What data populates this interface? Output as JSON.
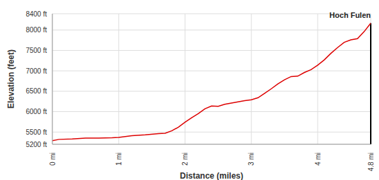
{
  "chart_data": {
    "type": "line",
    "x_label": "Distance (miles)",
    "y_label": "Elevation (feet)",
    "x": [
      0,
      0.1,
      0.3,
      0.5,
      0.7,
      0.9,
      1.0,
      1.1,
      1.2,
      1.4,
      1.6,
      1.7,
      1.8,
      1.9,
      2.0,
      2.1,
      2.2,
      2.3,
      2.4,
      2.5,
      2.6,
      2.7,
      2.8,
      2.9,
      3.0,
      3.1,
      3.2,
      3.3,
      3.4,
      3.5,
      3.6,
      3.7,
      3.8,
      3.9,
      4.0,
      4.1,
      4.2,
      4.3,
      4.4,
      4.5,
      4.6,
      4.7,
      4.8
    ],
    "values": [
      5290,
      5320,
      5330,
      5350,
      5350,
      5360,
      5370,
      5390,
      5410,
      5430,
      5460,
      5470,
      5530,
      5620,
      5740,
      5850,
      5950,
      6070,
      6140,
      6130,
      6180,
      6210,
      6240,
      6270,
      6290,
      6340,
      6450,
      6560,
      6680,
      6780,
      6860,
      6870,
      6960,
      7030,
      7140,
      7270,
      7430,
      7570,
      7700,
      7760,
      7790,
      7960,
      8170
    ],
    "color": "#dd0000",
    "xlim": [
      0,
      4.8
    ],
    "ylim": [
      5200,
      8400
    ],
    "xticks": [
      {
        "value": 0,
        "label": "0 mi"
      },
      {
        "value": 1,
        "label": "1 mi"
      },
      {
        "value": 2,
        "label": "2 mi"
      },
      {
        "value": 3,
        "label": "3 mi"
      },
      {
        "value": 4,
        "label": "4 mi"
      },
      {
        "value": 4.8,
        "label": "4.8 mi"
      }
    ],
    "yticks": [
      {
        "value": 5200,
        "label": "5200 ft"
      },
      {
        "value": 5500,
        "label": "5500 ft"
      },
      {
        "value": 6000,
        "label": "6000 ft"
      },
      {
        "value": 6500,
        "label": "6500 ft"
      },
      {
        "value": 7000,
        "label": "7000 ft"
      },
      {
        "value": 7500,
        "label": "7500 ft"
      },
      {
        "value": 8000,
        "label": "8000 ft"
      },
      {
        "value": 8400,
        "label": "8400 ft"
      }
    ],
    "grid": true,
    "annotations": [
      {
        "text": "Hoch Fulen",
        "x": 4.8,
        "y": 8170
      }
    ]
  }
}
